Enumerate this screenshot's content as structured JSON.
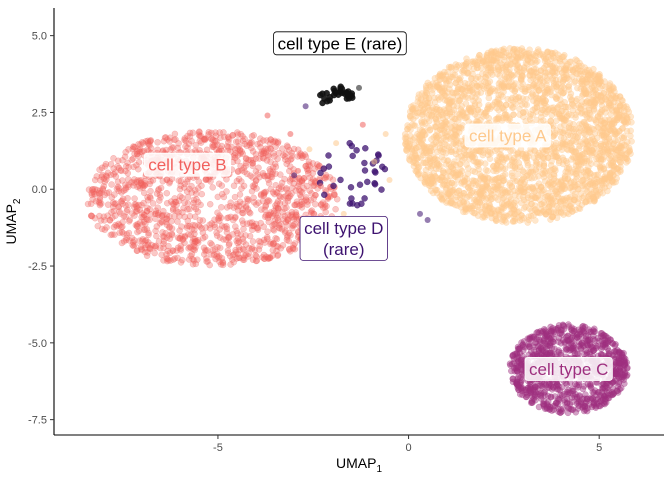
{
  "chart_data": {
    "type": "scatter",
    "title": "",
    "xlabel": {
      "base": "UMAP",
      "sub": "1"
    },
    "ylabel": {
      "base": "UMAP",
      "sub": "2"
    },
    "xlim": [
      -9.3,
      6.7
    ],
    "ylim": [
      -8.0,
      5.9
    ],
    "x_ticks": [
      {
        "value": -5,
        "label": "-5"
      },
      {
        "value": 0,
        "label": "0"
      },
      {
        "value": 5,
        "label": "5"
      }
    ],
    "y_ticks": [
      {
        "value": 5.0,
        "label": "5.0"
      },
      {
        "value": 2.5,
        "label": "2.5"
      },
      {
        "value": 0.0,
        "label": "0.0"
      },
      {
        "value": -2.5,
        "label": "-2.5"
      },
      {
        "value": -5.0,
        "label": "-5.0"
      },
      {
        "value": -7.5,
        "label": "-7.5"
      }
    ],
    "grid": false,
    "legend": "none",
    "series": [
      {
        "key": "A",
        "color": "#FEC98D",
        "count": 2600,
        "center": [
          2.9,
          1.75
        ],
        "spread": [
          3.0,
          2.85
        ],
        "shape": "ellipse",
        "opacity": 0.45
      },
      {
        "key": "B",
        "color": "#F1605D",
        "count": 1300,
        "center": [
          -5.15,
          -0.3
        ],
        "spread": [
          3.3,
          2.2
        ],
        "shape": "ellipse",
        "opacity": 0.35
      },
      {
        "key": "C",
        "color": "#9E2F7F",
        "count": 900,
        "center": [
          4.2,
          -5.85
        ],
        "spread": [
          1.55,
          1.45
        ],
        "shape": "ellipse",
        "opacity": 0.45
      },
      {
        "key": "D",
        "color": "#3E1370",
        "count": 35,
        "center": [
          -1.5,
          0.5
        ],
        "spread": [
          0.95,
          1.1
        ],
        "shape": "ellipse",
        "opacity": 0.75
      },
      {
        "key": "E",
        "color": "#111111",
        "count": 30,
        "center": [
          -2.0,
          3.0
        ],
        "spread": [
          0.5,
          0.35
        ],
        "shape": "arc",
        "opacity": 0.9
      }
    ],
    "scattered_points": [
      {
        "x": -3.7,
        "y": 2.4,
        "color": "#F1605D"
      },
      {
        "x": -3.1,
        "y": 1.8,
        "color": "#F1605D"
      },
      {
        "x": -2.9,
        "y": 0.6,
        "color": "#F1605D"
      },
      {
        "x": -2.6,
        "y": 1.3,
        "color": "#FEC98D"
      },
      {
        "x": -2.3,
        "y": 0.1,
        "color": "#F1605D"
      },
      {
        "x": -1.9,
        "y": 1.5,
        "color": "#FEC98D"
      },
      {
        "x": -1.7,
        "y": -0.8,
        "color": "#FEC98D"
      },
      {
        "x": -1.2,
        "y": 2.1,
        "color": "#F1605D"
      },
      {
        "x": -0.9,
        "y": 0.9,
        "color": "#FEC98D"
      },
      {
        "x": -0.6,
        "y": 1.8,
        "color": "#FEC98D"
      },
      {
        "x": -2.7,
        "y": 2.7,
        "color": "#3E1370"
      },
      {
        "x": -0.5,
        "y": 0.3,
        "color": "#FEC98D"
      },
      {
        "x": 0.3,
        "y": -0.8,
        "color": "#3E1370"
      },
      {
        "x": 0.5,
        "y": -1.0,
        "color": "#3E1370"
      },
      {
        "x": -3.0,
        "y": 0.45,
        "color": "#3E1370"
      },
      {
        "x": -1.3,
        "y": 3.3,
        "color": "#111111"
      }
    ],
    "annotations": [
      {
        "key": "E",
        "line1": "cell type E (rare)",
        "line2": "",
        "x": -1.8,
        "y": 4.75,
        "text_color": "#000000",
        "fill": "#ffffff",
        "border": "#000000"
      },
      {
        "key": "A",
        "line1": "cell type A",
        "line2": "",
        "x": 2.6,
        "y": 1.75,
        "text_color": "#FEC98D",
        "fill": "#ffffff",
        "border": "#ffffff"
      },
      {
        "key": "B",
        "line1": "cell type B",
        "line2": "",
        "x": -5.8,
        "y": 0.8,
        "text_color": "#F1605D",
        "fill": "#ffffff",
        "border": "#ffffff"
      },
      {
        "key": "D",
        "line1": "cell type D",
        "line2": "(rare)",
        "x": -1.7,
        "y": -1.6,
        "text_color": "#3E1370",
        "fill": "#ffffff",
        "border": "#3E1370"
      },
      {
        "key": "C",
        "line1": "cell type C",
        "line2": "",
        "x": 4.2,
        "y": -5.85,
        "text_color": "#9E2F7F",
        "fill": "#ffffff",
        "border": "#ffffff"
      }
    ]
  }
}
